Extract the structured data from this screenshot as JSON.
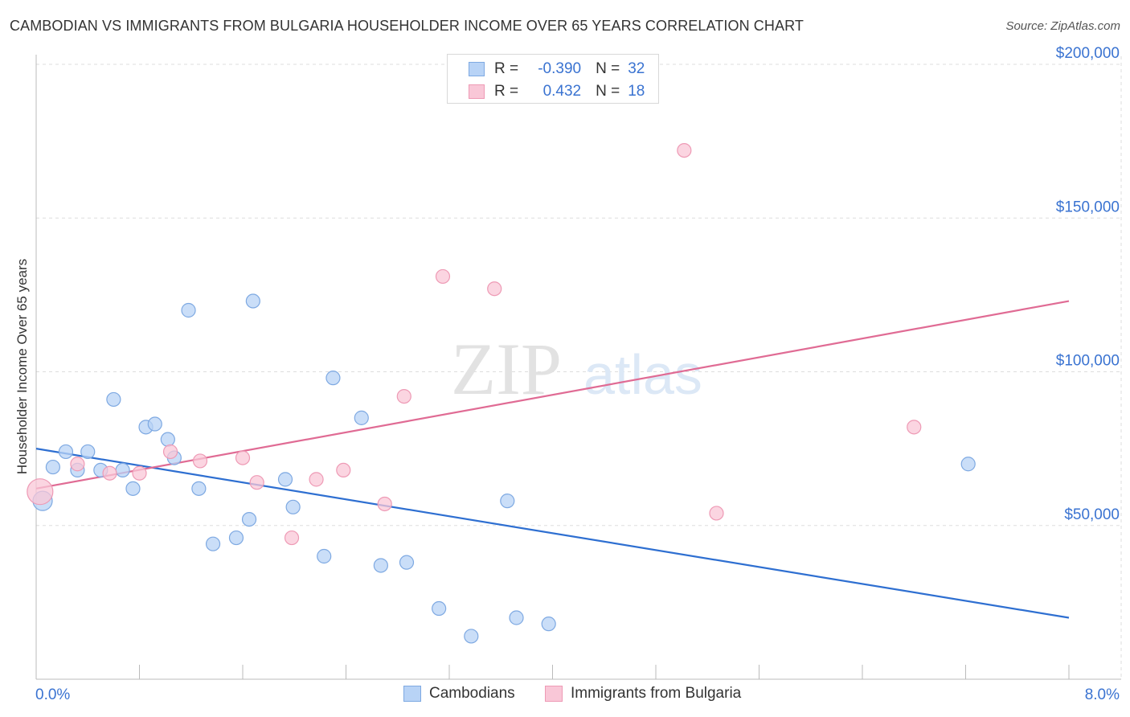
{
  "title": "CAMBODIAN VS IMMIGRANTS FROM BULGARIA HOUSEHOLDER INCOME OVER 65 YEARS CORRELATION CHART",
  "source": "Source: ZipAtlas.com",
  "watermark": {
    "zip": "ZIP",
    "atlas": "atlas"
  },
  "legend": {
    "r_label": "R =",
    "n_label": "N =",
    "rows": [
      {
        "r": "-0.390",
        "n": "32"
      },
      {
        "r": "0.432",
        "n": "18"
      }
    ]
  },
  "colors": {
    "blue_fill": "#b8d3f6",
    "blue_stroke": "#7ea9e2",
    "blue_line": "#2e6fd1",
    "pink_fill": "#f9c7d7",
    "pink_stroke": "#ee9ab5",
    "pink_line": "#e06b94",
    "axis_text": "#3a73d1",
    "grid": "#dddddd"
  },
  "chart_data": {
    "type": "scatter",
    "title": "CAMBODIAN VS IMMIGRANTS FROM BULGARIA HOUSEHOLDER INCOME OVER 65 YEARS CORRELATION CHART",
    "xlabel": "",
    "ylabel": "Householder Income Over 65 years",
    "xlim": [
      0,
      8.0
    ],
    "ylim": [
      0,
      200000
    ],
    "x_tick_labels": [
      "0.0%",
      "8.0%"
    ],
    "y_ticks": [
      50000,
      100000,
      150000,
      200000
    ],
    "y_tick_labels": [
      "$50,000",
      "$100,000",
      "$150,000",
      "$200,000"
    ],
    "grid": true,
    "legend_position": "bottom-center",
    "series": [
      {
        "name": "Cambodians",
        "color": "#7ea9e2",
        "points": [
          {
            "x": 0.05,
            "y": 58000
          },
          {
            "x": 0.13,
            "y": 69000
          },
          {
            "x": 0.23,
            "y": 74000
          },
          {
            "x": 0.32,
            "y": 68000
          },
          {
            "x": 0.4,
            "y": 74000
          },
          {
            "x": 0.5,
            "y": 68000
          },
          {
            "x": 0.6,
            "y": 91000
          },
          {
            "x": 0.67,
            "y": 68000
          },
          {
            "x": 0.75,
            "y": 62000
          },
          {
            "x": 0.85,
            "y": 82000
          },
          {
            "x": 0.92,
            "y": 83000
          },
          {
            "x": 1.02,
            "y": 78000
          },
          {
            "x": 1.07,
            "y": 72000
          },
          {
            "x": 1.18,
            "y": 120000
          },
          {
            "x": 1.26,
            "y": 62000
          },
          {
            "x": 1.37,
            "y": 44000
          },
          {
            "x": 1.55,
            "y": 46000
          },
          {
            "x": 1.65,
            "y": 52000
          },
          {
            "x": 1.68,
            "y": 123000
          },
          {
            "x": 1.93,
            "y": 65000
          },
          {
            "x": 1.99,
            "y": 56000
          },
          {
            "x": 2.23,
            "y": 40000
          },
          {
            "x": 2.3,
            "y": 98000
          },
          {
            "x": 2.52,
            "y": 85000
          },
          {
            "x": 2.67,
            "y": 37000
          },
          {
            "x": 2.87,
            "y": 38000
          },
          {
            "x": 3.12,
            "y": 23000
          },
          {
            "x": 3.37,
            "y": 14000
          },
          {
            "x": 3.65,
            "y": 58000
          },
          {
            "x": 3.72,
            "y": 20000
          },
          {
            "x": 3.97,
            "y": 18000
          },
          {
            "x": 7.22,
            "y": 70000
          }
        ],
        "trend": {
          "x": [
            0,
            8.0
          ],
          "y": [
            75000,
            20000
          ]
        }
      },
      {
        "name": "Immigrants from Bulgaria",
        "color": "#ee9ab5",
        "points": [
          {
            "x": 0.03,
            "y": 61000
          },
          {
            "x": 0.32,
            "y": 70000
          },
          {
            "x": 0.57,
            "y": 67000
          },
          {
            "x": 0.8,
            "y": 67000
          },
          {
            "x": 1.04,
            "y": 74000
          },
          {
            "x": 1.27,
            "y": 71000
          },
          {
            "x": 1.6,
            "y": 72000
          },
          {
            "x": 1.71,
            "y": 64000
          },
          {
            "x": 1.98,
            "y": 46000
          },
          {
            "x": 2.17,
            "y": 65000
          },
          {
            "x": 2.38,
            "y": 68000
          },
          {
            "x": 2.7,
            "y": 57000
          },
          {
            "x": 2.85,
            "y": 92000
          },
          {
            "x": 3.15,
            "y": 131000
          },
          {
            "x": 3.55,
            "y": 127000
          },
          {
            "x": 5.02,
            "y": 172000
          },
          {
            "x": 5.27,
            "y": 54000
          },
          {
            "x": 6.8,
            "y": 82000
          }
        ],
        "trend": {
          "x": [
            0,
            8.0
          ],
          "y": [
            62000,
            123000
          ]
        }
      }
    ]
  }
}
